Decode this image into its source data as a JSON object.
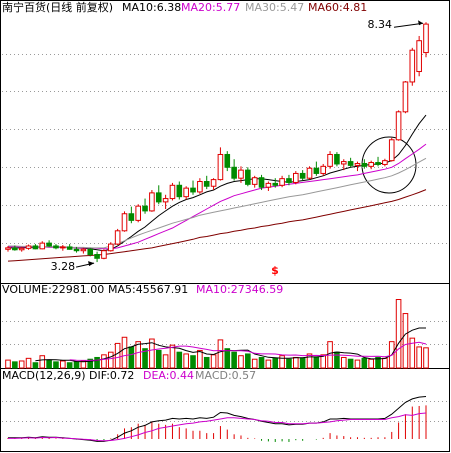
{
  "chart_data": [
    {
      "type": "candlestick",
      "title": "南宁百货(日线 前复权)",
      "ylim": [
        2.86,
        8.64
      ],
      "yticks": [
        3.68,
        4.48,
        5.28,
        6.08,
        6.88,
        7.68
      ],
      "grid": true,
      "up_color": "#e00000",
      "down_color": "#008a00",
      "ohlc": [
        [
          3.55,
          3.62,
          3.5,
          3.58
        ],
        [
          3.58,
          3.63,
          3.52,
          3.54
        ],
        [
          3.54,
          3.6,
          3.5,
          3.57
        ],
        [
          3.57,
          3.65,
          3.54,
          3.62
        ],
        [
          3.62,
          3.66,
          3.55,
          3.56
        ],
        [
          3.56,
          3.72,
          3.55,
          3.68
        ],
        [
          3.68,
          3.74,
          3.6,
          3.62
        ],
        [
          3.62,
          3.66,
          3.55,
          3.58
        ],
        [
          3.58,
          3.64,
          3.52,
          3.6
        ],
        [
          3.6,
          3.66,
          3.54,
          3.55
        ],
        [
          3.55,
          3.6,
          3.48,
          3.52
        ],
        [
          3.52,
          3.58,
          3.46,
          3.55
        ],
        [
          3.55,
          3.58,
          3.4,
          3.44
        ],
        [
          3.44,
          3.5,
          3.28,
          3.36
        ],
        [
          3.36,
          3.55,
          3.34,
          3.52
        ],
        [
          3.52,
          3.7,
          3.5,
          3.66
        ],
        [
          3.66,
          3.98,
          3.64,
          3.94
        ],
        [
          3.94,
          4.35,
          3.92,
          4.3
        ],
        [
          4.3,
          4.45,
          4.1,
          4.16
        ],
        [
          4.16,
          4.5,
          4.12,
          4.46
        ],
        [
          4.46,
          4.62,
          4.3,
          4.36
        ],
        [
          4.36,
          4.8,
          4.34,
          4.74
        ],
        [
          4.74,
          4.9,
          4.5,
          4.55
        ],
        [
          4.55,
          4.7,
          4.4,
          4.62
        ],
        [
          4.62,
          4.95,
          4.58,
          4.9
        ],
        [
          4.9,
          4.98,
          4.6,
          4.66
        ],
        [
          4.66,
          4.88,
          4.6,
          4.84
        ],
        [
          4.84,
          5.0,
          4.7,
          4.76
        ],
        [
          4.76,
          5.05,
          4.72,
          4.98
        ],
        [
          4.98,
          5.1,
          4.82,
          4.88
        ],
        [
          4.88,
          5.05,
          4.8,
          5.02
        ],
        [
          5.02,
          5.7,
          5.0,
          5.55
        ],
        [
          5.55,
          5.62,
          5.2,
          5.28
        ],
        [
          5.28,
          5.45,
          5.0,
          5.05
        ],
        [
          5.05,
          5.3,
          4.95,
          5.22
        ],
        [
          5.22,
          5.28,
          4.88,
          4.92
        ],
        [
          4.92,
          5.1,
          4.85,
          5.06
        ],
        [
          5.06,
          5.12,
          4.8,
          4.86
        ],
        [
          4.86,
          4.98,
          4.78,
          4.94
        ],
        [
          4.94,
          5.05,
          4.85,
          4.9
        ],
        [
          4.9,
          5.1,
          4.86,
          5.04
        ],
        [
          5.04,
          5.12,
          4.9,
          4.96
        ],
        [
          4.96,
          5.2,
          4.92,
          5.15
        ],
        [
          5.15,
          5.22,
          5.0,
          5.05
        ],
        [
          5.05,
          5.3,
          5.02,
          5.26
        ],
        [
          5.26,
          5.4,
          5.1,
          5.15
        ],
        [
          5.15,
          5.35,
          5.1,
          5.3
        ],
        [
          5.3,
          5.62,
          5.25,
          5.55
        ],
        [
          5.55,
          5.6,
          5.3,
          5.35
        ],
        [
          5.35,
          5.45,
          5.22,
          5.4
        ],
        [
          5.4,
          5.48,
          5.28,
          5.32
        ],
        [
          5.32,
          5.4,
          5.2,
          5.36
        ],
        [
          5.36,
          5.45,
          5.25,
          5.3
        ],
        [
          5.3,
          5.42,
          5.24,
          5.38
        ],
        [
          5.38,
          5.5,
          5.3,
          5.34
        ],
        [
          5.34,
          5.46,
          5.3,
          5.42
        ],
        [
          5.42,
          5.9,
          5.4,
          5.86
        ],
        [
          5.86,
          6.48,
          5.84,
          6.45
        ],
        [
          6.45,
          7.1,
          6.42,
          7.08
        ],
        [
          7.08,
          7.8,
          7.0,
          7.75
        ],
        [
          7.3,
          8.05,
          7.2,
          7.95
        ],
        [
          7.7,
          8.34,
          7.6,
          8.3
        ]
      ],
      "series": [
        {
          "name": "MA10:6.38",
          "color": "#000000",
          "values": [
            3.58,
            3.58,
            3.58,
            3.59,
            3.59,
            3.6,
            3.6,
            3.6,
            3.6,
            3.59,
            3.58,
            3.57,
            3.56,
            3.54,
            3.52,
            3.55,
            3.62,
            3.72,
            3.82,
            3.93,
            4.02,
            4.14,
            4.26,
            4.36,
            4.46,
            4.54,
            4.6,
            4.64,
            4.7,
            4.76,
            4.8,
            4.88,
            4.94,
            4.98,
            5.0,
            5.02,
            5.04,
            5.04,
            5.02,
            5.0,
            4.98,
            4.96,
            4.98,
            5.0,
            5.02,
            5.06,
            5.1,
            5.16,
            5.2,
            5.24,
            5.28,
            5.3,
            5.32,
            5.34,
            5.35,
            5.37,
            5.42,
            5.55,
            5.74,
            5.98,
            6.2,
            6.38
          ]
        },
        {
          "name": "MA20:5.77",
          "color": "#cc00cc",
          "values": [
            3.6,
            3.6,
            3.6,
            3.6,
            3.6,
            3.6,
            3.59,
            3.59,
            3.59,
            3.59,
            3.58,
            3.58,
            3.58,
            3.57,
            3.56,
            3.56,
            3.58,
            3.62,
            3.66,
            3.7,
            3.76,
            3.82,
            3.88,
            3.94,
            4.0,
            4.08,
            4.16,
            4.24,
            4.32,
            4.4,
            4.48,
            4.56,
            4.62,
            4.68,
            4.72,
            4.76,
            4.8,
            4.84,
            4.86,
            4.88,
            4.9,
            4.92,
            4.94,
            4.96,
            4.98,
            5.0,
            5.02,
            5.04,
            5.06,
            5.08,
            5.1,
            5.12,
            5.15,
            5.18,
            5.21,
            5.24,
            5.28,
            5.36,
            5.46,
            5.56,
            5.66,
            5.77
          ]
        },
        {
          "name": "MA30:5.47",
          "color": "#999999",
          "values": [
            3.62,
            3.62,
            3.61,
            3.61,
            3.61,
            3.6,
            3.6,
            3.6,
            3.6,
            3.59,
            3.59,
            3.59,
            3.58,
            3.58,
            3.58,
            3.62,
            3.67,
            3.73,
            3.79,
            3.85,
            3.9,
            3.95,
            4.0,
            4.05,
            4.1,
            4.14,
            4.18,
            4.22,
            4.27,
            4.3,
            4.33,
            4.36,
            4.39,
            4.42,
            4.45,
            4.48,
            4.51,
            4.54,
            4.57,
            4.6,
            4.63,
            4.66,
            4.68,
            4.7,
            4.73,
            4.76,
            4.79,
            4.82,
            4.85,
            4.88,
            4.91,
            4.94,
            4.97,
            5.0,
            5.03,
            5.06,
            5.1,
            5.16,
            5.23,
            5.31,
            5.39,
            5.47
          ]
        },
        {
          "name": "MA60:4.81",
          "color": "#800000",
          "values": [
            3.3,
            3.31,
            3.32,
            3.33,
            3.34,
            3.35,
            3.36,
            3.37,
            3.38,
            3.39,
            3.4,
            3.41,
            3.42,
            3.43,
            3.44,
            3.46,
            3.48,
            3.5,
            3.52,
            3.54,
            3.56,
            3.58,
            3.61,
            3.64,
            3.67,
            3.7,
            3.73,
            3.76,
            3.8,
            3.82,
            3.85,
            3.88,
            3.9,
            3.93,
            3.95,
            3.98,
            4.0,
            4.03,
            4.05,
            4.08,
            4.1,
            4.13,
            4.15,
            4.17,
            4.2,
            4.23,
            4.26,
            4.29,
            4.32,
            4.35,
            4.38,
            4.41,
            4.44,
            4.47,
            4.5,
            4.53,
            4.56,
            4.6,
            4.65,
            4.7,
            4.75,
            4.81
          ]
        }
      ],
      "annotations": [
        {
          "text": "8.34",
          "color": "#000000"
        },
        {
          "text": "3.28",
          "color": "#000000"
        },
        {
          "text": "$",
          "color": "#ff0000"
        }
      ]
    },
    {
      "type": "bar",
      "title": "VOLUME:22981.00",
      "ylim": [
        0,
        82000
      ],
      "yticks": [
        27000,
        54000
      ],
      "grid": true,
      "up_color": "#e00000",
      "down_color": "#008a00",
      "values": [
        9000,
        7000,
        8000,
        11000,
        6000,
        14000,
        9000,
        7000,
        8000,
        6000,
        7000,
        8000,
        10000,
        12000,
        15000,
        18000,
        28000,
        35000,
        24000,
        30000,
        22000,
        33000,
        20000,
        15000,
        26000,
        18000,
        16000,
        14000,
        20000,
        12000,
        15000,
        32000,
        22000,
        18000,
        14000,
        16000,
        10000,
        12000,
        9000,
        11000,
        14000,
        10000,
        12000,
        11000,
        16000,
        12000,
        15000,
        30000,
        18000,
        12000,
        10000,
        9000,
        11000,
        10000,
        12000,
        11000,
        30000,
        78000,
        62000,
        34000,
        24000,
        22981
      ],
      "series": [
        {
          "name": "MA5:45567.91",
          "color": "#000000",
          "values": [
            null,
            null,
            null,
            null,
            8200,
            9200,
            9600,
            9400,
            8800,
            8800,
            7400,
            7200,
            7800,
            8600,
            10400,
            12600,
            16600,
            22000,
            24000,
            27000,
            27800,
            28800,
            25800,
            24000,
            23200,
            22400,
            19800,
            17800,
            18800,
            16000,
            15400,
            18600,
            20200,
            19800,
            20200,
            20400,
            16000,
            14000,
            12200,
            11600,
            11200,
            11200,
            11600,
            11600,
            12600,
            12600,
            13200,
            16800,
            18200,
            17400,
            17000,
            15800,
            12000,
            10400,
            10400,
            10800,
            14800,
            28200,
            38600,
            43000,
            45600,
            45567.91
          ]
        },
        {
          "name": "MA10:27346.59",
          "color": "#cc00cc",
          "values": [
            null,
            null,
            null,
            null,
            null,
            null,
            null,
            null,
            null,
            9500,
            8900,
            8600,
            8700,
            9000,
            9800,
            10700,
            12000,
            14100,
            15300,
            17700,
            19000,
            20500,
            21600,
            22600,
            23700,
            24900,
            24900,
            23900,
            22500,
            21200,
            19700,
            19900,
            19600,
            19700,
            19600,
            19000,
            16700,
            16100,
            16100,
            15900,
            14900,
            14700,
            14800,
            14100,
            14200,
            14400,
            14100,
            14700,
            14800,
            14500,
            14100,
            13400,
            13300,
            13200,
            13300,
            12900,
            14400,
            21800,
            26800,
            28200,
            29300,
            27346.59
          ]
        }
      ]
    },
    {
      "type": "macd",
      "title": "MACD(12,26,9)",
      "ylim": [
        -0.22,
        1.0
      ],
      "yticks": [
        0.3,
        0.65
      ],
      "grid": true,
      "series": [
        {
          "name": "DIF:0.72",
          "color": "#000000",
          "values": [
            0.02,
            0.02,
            0.02,
            0.03,
            0.02,
            0.04,
            0.03,
            0.03,
            0.02,
            0.01,
            0.0,
            -0.01,
            -0.02,
            -0.04,
            -0.04,
            -0.02,
            0.03,
            0.1,
            0.14,
            0.2,
            0.23,
            0.29,
            0.31,
            0.32,
            0.35,
            0.34,
            0.35,
            0.34,
            0.36,
            0.35,
            0.37,
            0.45,
            0.44,
            0.4,
            0.38,
            0.35,
            0.33,
            0.3,
            0.28,
            0.26,
            0.26,
            0.24,
            0.25,
            0.25,
            0.27,
            0.27,
            0.29,
            0.34,
            0.34,
            0.35,
            0.34,
            0.34,
            0.34,
            0.34,
            0.34,
            0.35,
            0.42,
            0.52,
            0.62,
            0.68,
            0.71,
            0.72
          ]
        },
        {
          "name": "DEA:0.44",
          "color": "#cc00cc",
          "values": [
            0.01,
            0.01,
            0.015,
            0.02,
            0.015,
            0.025,
            0.02,
            0.025,
            0.015,
            0.01,
            0.005,
            -0.005,
            -0.01,
            -0.025,
            -0.03,
            -0.025,
            -0.01,
            0.01,
            0.04,
            0.07,
            0.11,
            0.14,
            0.18,
            0.2,
            0.22,
            0.24,
            0.26,
            0.27,
            0.29,
            0.3,
            0.32,
            0.34,
            0.36,
            0.36,
            0.35,
            0.34,
            0.33,
            0.31,
            0.3,
            0.28,
            0.28,
            0.26,
            0.26,
            0.26,
            0.27,
            0.27,
            0.28,
            0.29,
            0.31,
            0.32,
            0.33,
            0.33,
            0.33,
            0.33,
            0.33,
            0.33,
            0.36,
            0.38,
            0.41,
            0.4,
            0.43,
            0.44
          ]
        }
      ],
      "histogram": {
        "name": "MACD:0.57",
        "color": "#808080",
        "up_color": "#e00000",
        "down_color": "#008a00",
        "values": [
          0.02,
          0.02,
          0.01,
          0.02,
          0.01,
          0.03,
          0.02,
          0.01,
          0.01,
          0.0,
          -0.01,
          -0.01,
          -0.02,
          -0.03,
          -0.02,
          0.01,
          0.08,
          0.18,
          0.2,
          0.26,
          0.24,
          0.3,
          0.26,
          0.24,
          0.26,
          0.2,
          0.18,
          0.14,
          0.14,
          0.1,
          0.1,
          0.22,
          0.16,
          0.08,
          0.06,
          0.02,
          0.01,
          -0.03,
          -0.04,
          -0.05,
          -0.04,
          -0.05,
          -0.02,
          -0.03,
          0.0,
          -0.01,
          0.02,
          0.1,
          0.06,
          0.05,
          0.03,
          0.03,
          0.02,
          0.02,
          0.03,
          0.03,
          0.12,
          0.28,
          0.42,
          0.55,
          0.56,
          0.57
        ]
      }
    }
  ]
}
